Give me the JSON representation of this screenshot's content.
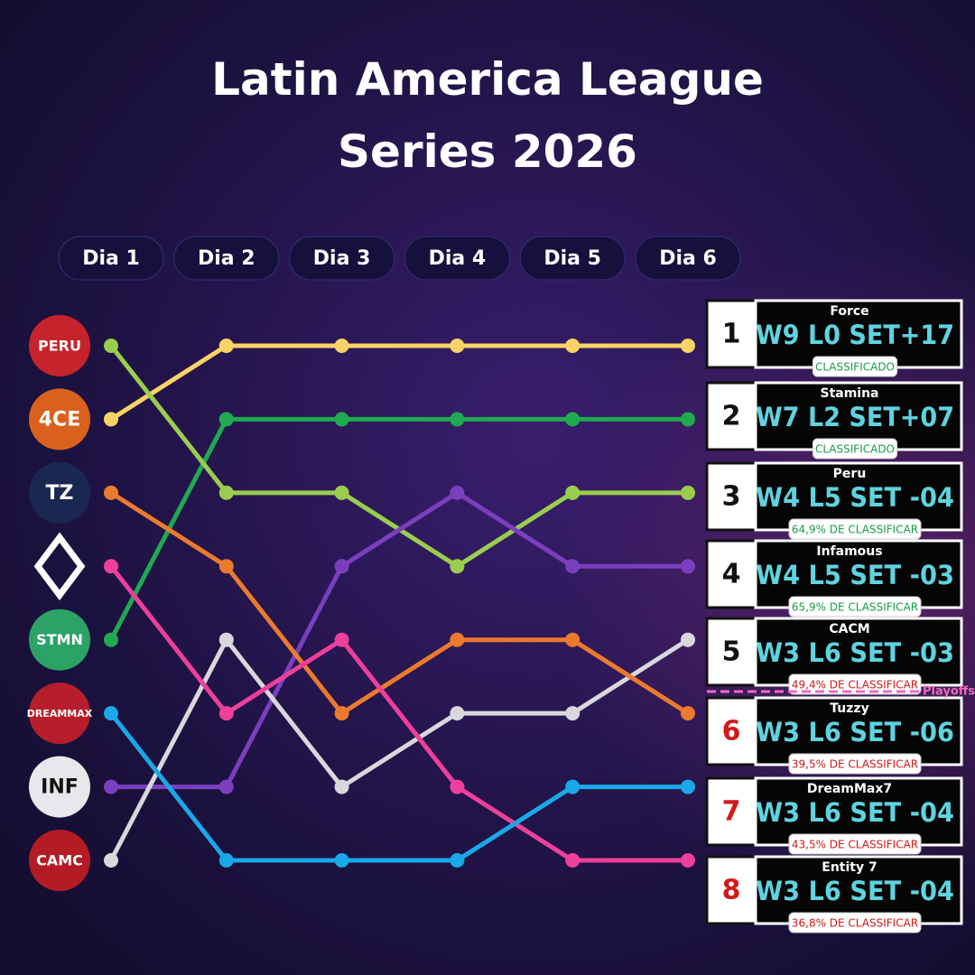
{
  "chart_data": {
    "type": "line",
    "title": "Latin America League Series 2026",
    "categories": [
      "Dia 1",
      "Dia 2",
      "Dia 3",
      "Dia 4",
      "Dia 5",
      "Dia 6"
    ],
    "ylim": [
      1,
      8
    ],
    "inverted": true,
    "series": [
      {
        "color": "#f9d465",
        "values": [
          2,
          1,
          1,
          1,
          1,
          1
        ]
      },
      {
        "color": "#1faa50",
        "values": [
          5,
          2,
          2,
          2,
          2,
          2
        ]
      },
      {
        "color": "#9acd4e",
        "values": [
          1,
          3,
          3,
          4,
          3,
          3
        ]
      },
      {
        "color": "#7a3fbf",
        "values": [
          7,
          7,
          4,
          3,
          4,
          4
        ]
      },
      {
        "color": "#d8d8dc",
        "values": [
          8,
          5,
          7,
          6,
          6,
          5
        ]
      },
      {
        "color": "#ec7a2e",
        "values": [
          3,
          4,
          6,
          5,
          5,
          6
        ]
      },
      {
        "color": "#ee3f9a",
        "values": [
          4,
          6,
          5,
          7,
          8,
          8
        ]
      },
      {
        "color": "#19a8e8",
        "values": [
          6,
          8,
          8,
          8,
          7,
          7
        ]
      }
    ],
    "logos": [
      "PERU",
      "4CE",
      "TZ",
      null,
      "STMN",
      "DREAMMAX",
      "INF",
      "CAMC"
    ]
  },
  "standings": {
    "playoffs_label": "Playoffs",
    "rows": [
      {
        "rank": 1,
        "team": "Force",
        "record": "W9 L0 SET+17",
        "status": "CLASSIFICADO"
      },
      {
        "rank": 2,
        "team": "Stamina",
        "record": "W7 L2 SET+07",
        "status": "CLASSIFICADO"
      },
      {
        "rank": 3,
        "team": "Peru",
        "record": "W4 L5 SET -04",
        "status": "64,9% DE CLASSIFICAR"
      },
      {
        "rank": 4,
        "team": "Infamous",
        "record": "W4 L5 SET -03",
        "status": "65,9% DE CLASSIFICAR"
      },
      {
        "rank": 5,
        "team": "CACM",
        "record": "W3 L6 SET -03",
        "status": "49,4% DE CLASSIFICAR"
      },
      {
        "rank": 6,
        "team": "Tuzzy",
        "record": "W3 L6 SET -06",
        "status": "39,5% DE CLASSIFICAR"
      },
      {
        "rank": 7,
        "team": "DreamMax7",
        "record": "W3 L6 SET -04",
        "status": "43,5% DE CLASSIFICAR"
      },
      {
        "rank": 8,
        "team": "Entity 7",
        "record": "W3 L6 SET -04",
        "status": "36,8% DE CLASSIFICAR"
      }
    ]
  }
}
